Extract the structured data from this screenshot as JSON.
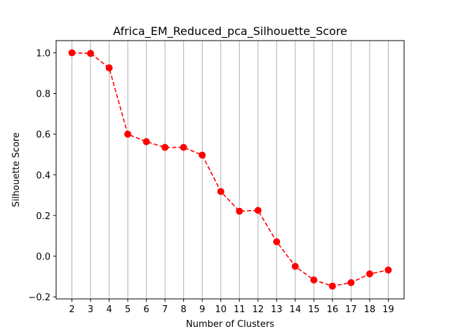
{
  "chart_data": {
    "type": "line",
    "title": "Africa_EM_Reduced_pca_Silhouette_Score",
    "xlabel": "Number of Clusters",
    "ylabel": "Silhouette Score",
    "x": [
      2,
      3,
      4,
      5,
      6,
      7,
      8,
      9,
      10,
      11,
      12,
      13,
      14,
      15,
      16,
      17,
      18,
      19
    ],
    "x_tick_labels": [
      "2",
      "3",
      "4",
      "5",
      "6",
      "7",
      "8",
      "9",
      "10",
      "11",
      "12",
      "13",
      "14",
      "15",
      "16",
      "17",
      "18",
      "19"
    ],
    "series": [
      {
        "values": [
          1.0,
          0.997,
          0.926,
          0.6,
          0.563,
          0.535,
          0.535,
          0.497,
          0.318,
          0.221,
          0.225,
          0.071,
          -0.05,
          -0.117,
          -0.147,
          -0.13,
          -0.087,
          -0.068
        ],
        "color": "#ff0000",
        "line_style": "dashed",
        "marker": "circle"
      }
    ],
    "xlim": [
      1.15,
      19.85
    ],
    "ylim": [
      -0.21,
      1.06
    ],
    "y_ticks": [
      -0.2,
      0.0,
      0.2,
      0.4,
      0.6,
      0.8,
      1.0
    ],
    "y_tick_labels": [
      "−0.2",
      "0.0",
      "0.2",
      "0.4",
      "0.6",
      "0.8",
      "1.0"
    ],
    "grid": "x-axis only",
    "grid_color": "#b0b0b0",
    "legend": "none"
  }
}
